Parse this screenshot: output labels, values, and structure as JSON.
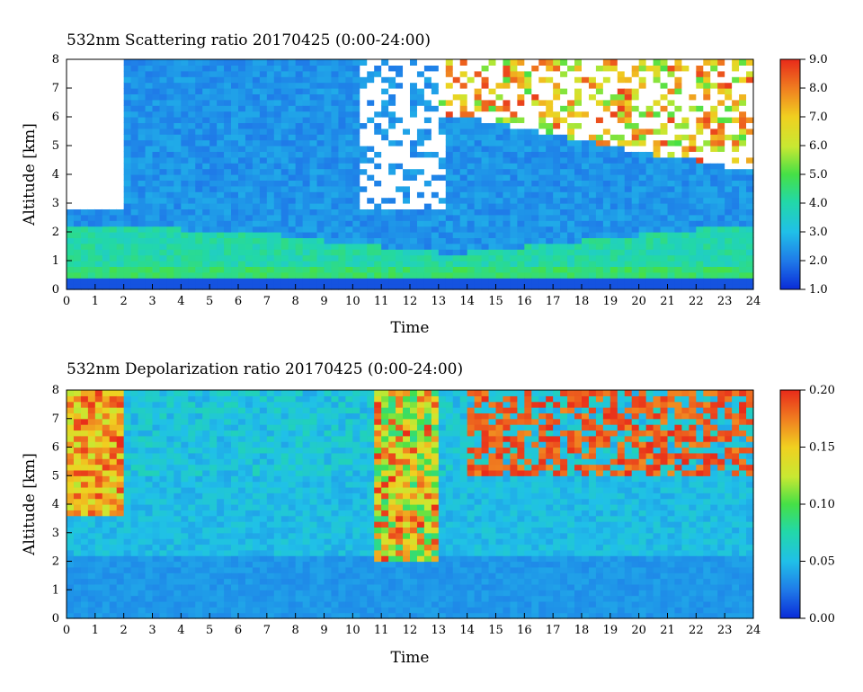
{
  "chart_data": [
    {
      "type": "heatmap",
      "title": "532nm Scattering ratio  20170425 (0:00-24:00)",
      "xlabel": "Time",
      "ylabel": "Altitude [km]",
      "xlim": [
        0,
        24
      ],
      "ylim": [
        0,
        8
      ],
      "x_ticks": [
        "0",
        "1",
        "2",
        "3",
        "4",
        "5",
        "6",
        "7",
        "8",
        "9",
        "10",
        "11",
        "12",
        "13",
        "14",
        "15",
        "16",
        "17",
        "18",
        "19",
        "20",
        "21",
        "22",
        "23",
        "24"
      ],
      "y_ticks": [
        "0",
        "1",
        "2",
        "3",
        "4",
        "5",
        "6",
        "7",
        "8"
      ],
      "colorbar": {
        "min": 1.0,
        "max": 9.0,
        "ticks": [
          "1.0",
          "2.0",
          "3.0",
          "4.0",
          "5.0",
          "6.0",
          "7.0",
          "8.0",
          "9.0"
        ]
      },
      "features": {
        "surface_layer_value": 1.5,
        "boundary_layer_top_km": [
          2.3,
          2.3,
          2.2,
          2.2,
          2.1,
          2.1,
          2.0,
          2.0,
          1.8,
          1.7,
          1.6,
          1.5,
          1.4,
          1.3,
          1.3,
          1.4,
          1.5,
          1.6,
          1.7,
          1.8,
          1.9,
          2.0,
          2.1,
          2.2,
          2.3
        ],
        "free_troposphere_value": 2.0,
        "upper_cloud_base_km": [
          null,
          null,
          null,
          null,
          null,
          null,
          null,
          null,
          null,
          null,
          null,
          null,
          null,
          null,
          6.0,
          5.8,
          5.6,
          5.4,
          5.2,
          5.0,
          4.8,
          4.6,
          4.5,
          4.3,
          4.2
        ]
      }
    },
    {
      "type": "heatmap",
      "title": "532nm Depolarization ratio  20170425 (0:00-24:00)",
      "xlabel": "Time",
      "ylabel": "Altitude [km]",
      "xlim": [
        0,
        24
      ],
      "ylim": [
        0,
        8
      ],
      "x_ticks": [
        "0",
        "1",
        "2",
        "3",
        "4",
        "5",
        "6",
        "7",
        "8",
        "9",
        "10",
        "11",
        "12",
        "13",
        "14",
        "15",
        "16",
        "17",
        "18",
        "19",
        "20",
        "21",
        "22",
        "23",
        "24"
      ],
      "y_ticks": [
        "0",
        "1",
        "2",
        "3",
        "4",
        "5",
        "6",
        "7",
        "8"
      ],
      "colorbar": {
        "min": 0.0,
        "max": 0.2,
        "ticks": [
          "0.00",
          "0.05",
          "0.10",
          "0.15",
          "0.20"
        ]
      },
      "features": {
        "boundary_layer_value": 0.03,
        "free_troposphere_value": 0.04,
        "upper_cloud_value": 0.17
      }
    }
  ]
}
